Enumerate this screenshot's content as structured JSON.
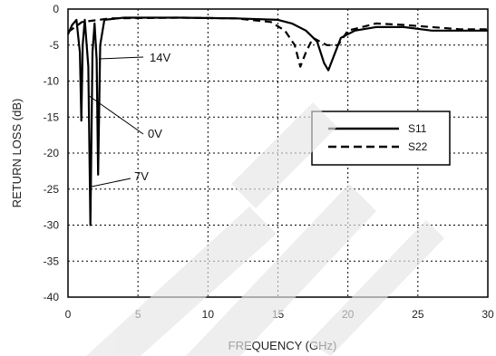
{
  "chart_data": {
    "type": "line",
    "xlabel": "FREQUENCY (GHz)",
    "ylabel": "RETURN LOSS (dB)",
    "xlim": [
      0,
      30
    ],
    "ylim": [
      -40,
      0
    ],
    "xticks": [
      "0",
      "5",
      "10",
      "15",
      "20",
      "25",
      "30"
    ],
    "yticks": [
      "0",
      "-5",
      "-10",
      "-15",
      "-20",
      "-25",
      "-30",
      "-35",
      "-40"
    ],
    "grid": true,
    "legend": {
      "position": "right",
      "entries": [
        {
          "label": "S11",
          "style": "solid"
        },
        {
          "label": "S22",
          "style": "dashed"
        }
      ]
    },
    "annotations": [
      {
        "text": "14V"
      },
      {
        "text": "0V"
      },
      {
        "text": "7V"
      }
    ],
    "series": [
      {
        "name": "S11",
        "style": "solid",
        "values": [
          {
            "x": 0,
            "y": -3.5
          },
          {
            "x": 0.3,
            "y": -2.2
          },
          {
            "x": 0.6,
            "y": -1.5
          },
          {
            "x": 0.85,
            "y": -6
          },
          {
            "x": 0.95,
            "y": -15.5
          },
          {
            "x": 1.05,
            "y": -5
          },
          {
            "x": 1.2,
            "y": -1.5
          },
          {
            "x": 1.45,
            "y": -8
          },
          {
            "x": 1.6,
            "y": -30
          },
          {
            "x": 1.75,
            "y": -6
          },
          {
            "x": 1.9,
            "y": -2
          },
          {
            "x": 2.05,
            "y": -7
          },
          {
            "x": 2.15,
            "y": -23
          },
          {
            "x": 2.3,
            "y": -5
          },
          {
            "x": 2.6,
            "y": -1.5
          },
          {
            "x": 4,
            "y": -1.2
          },
          {
            "x": 8,
            "y": -1.2
          },
          {
            "x": 12,
            "y": -1.3
          },
          {
            "x": 15,
            "y": -1.5
          },
          {
            "x": 16,
            "y": -2
          },
          {
            "x": 17,
            "y": -3
          },
          {
            "x": 17.8,
            "y": -4.5
          },
          {
            "x": 18.3,
            "y": -7.5
          },
          {
            "x": 18.6,
            "y": -8.5
          },
          {
            "x": 19,
            "y": -6.5
          },
          {
            "x": 19.5,
            "y": -4
          },
          {
            "x": 20.5,
            "y": -3
          },
          {
            "x": 22,
            "y": -2.5
          },
          {
            "x": 24,
            "y": -2.5
          },
          {
            "x": 26,
            "y": -3
          },
          {
            "x": 28,
            "y": -3
          },
          {
            "x": 30,
            "y": -3
          }
        ]
      },
      {
        "name": "S22",
        "style": "dashed",
        "values": [
          {
            "x": 0,
            "y": -3.2
          },
          {
            "x": 1,
            "y": -1.8
          },
          {
            "x": 3,
            "y": -1.3
          },
          {
            "x": 8,
            "y": -1.2
          },
          {
            "x": 12,
            "y": -1.3
          },
          {
            "x": 14.5,
            "y": -1.8
          },
          {
            "x": 15.5,
            "y": -3
          },
          {
            "x": 16.2,
            "y": -5
          },
          {
            "x": 16.6,
            "y": -8
          },
          {
            "x": 17,
            "y": -6
          },
          {
            "x": 17.5,
            "y": -4
          },
          {
            "x": 18.5,
            "y": -5
          },
          {
            "x": 19.3,
            "y": -5
          },
          {
            "x": 20,
            "y": -3
          },
          {
            "x": 21,
            "y": -2.5
          },
          {
            "x": 22,
            "y": -2
          },
          {
            "x": 24,
            "y": -2.2
          },
          {
            "x": 26,
            "y": -2.5
          },
          {
            "x": 28,
            "y": -2.8
          },
          {
            "x": 30,
            "y": -2.8
          }
        ]
      }
    ]
  }
}
